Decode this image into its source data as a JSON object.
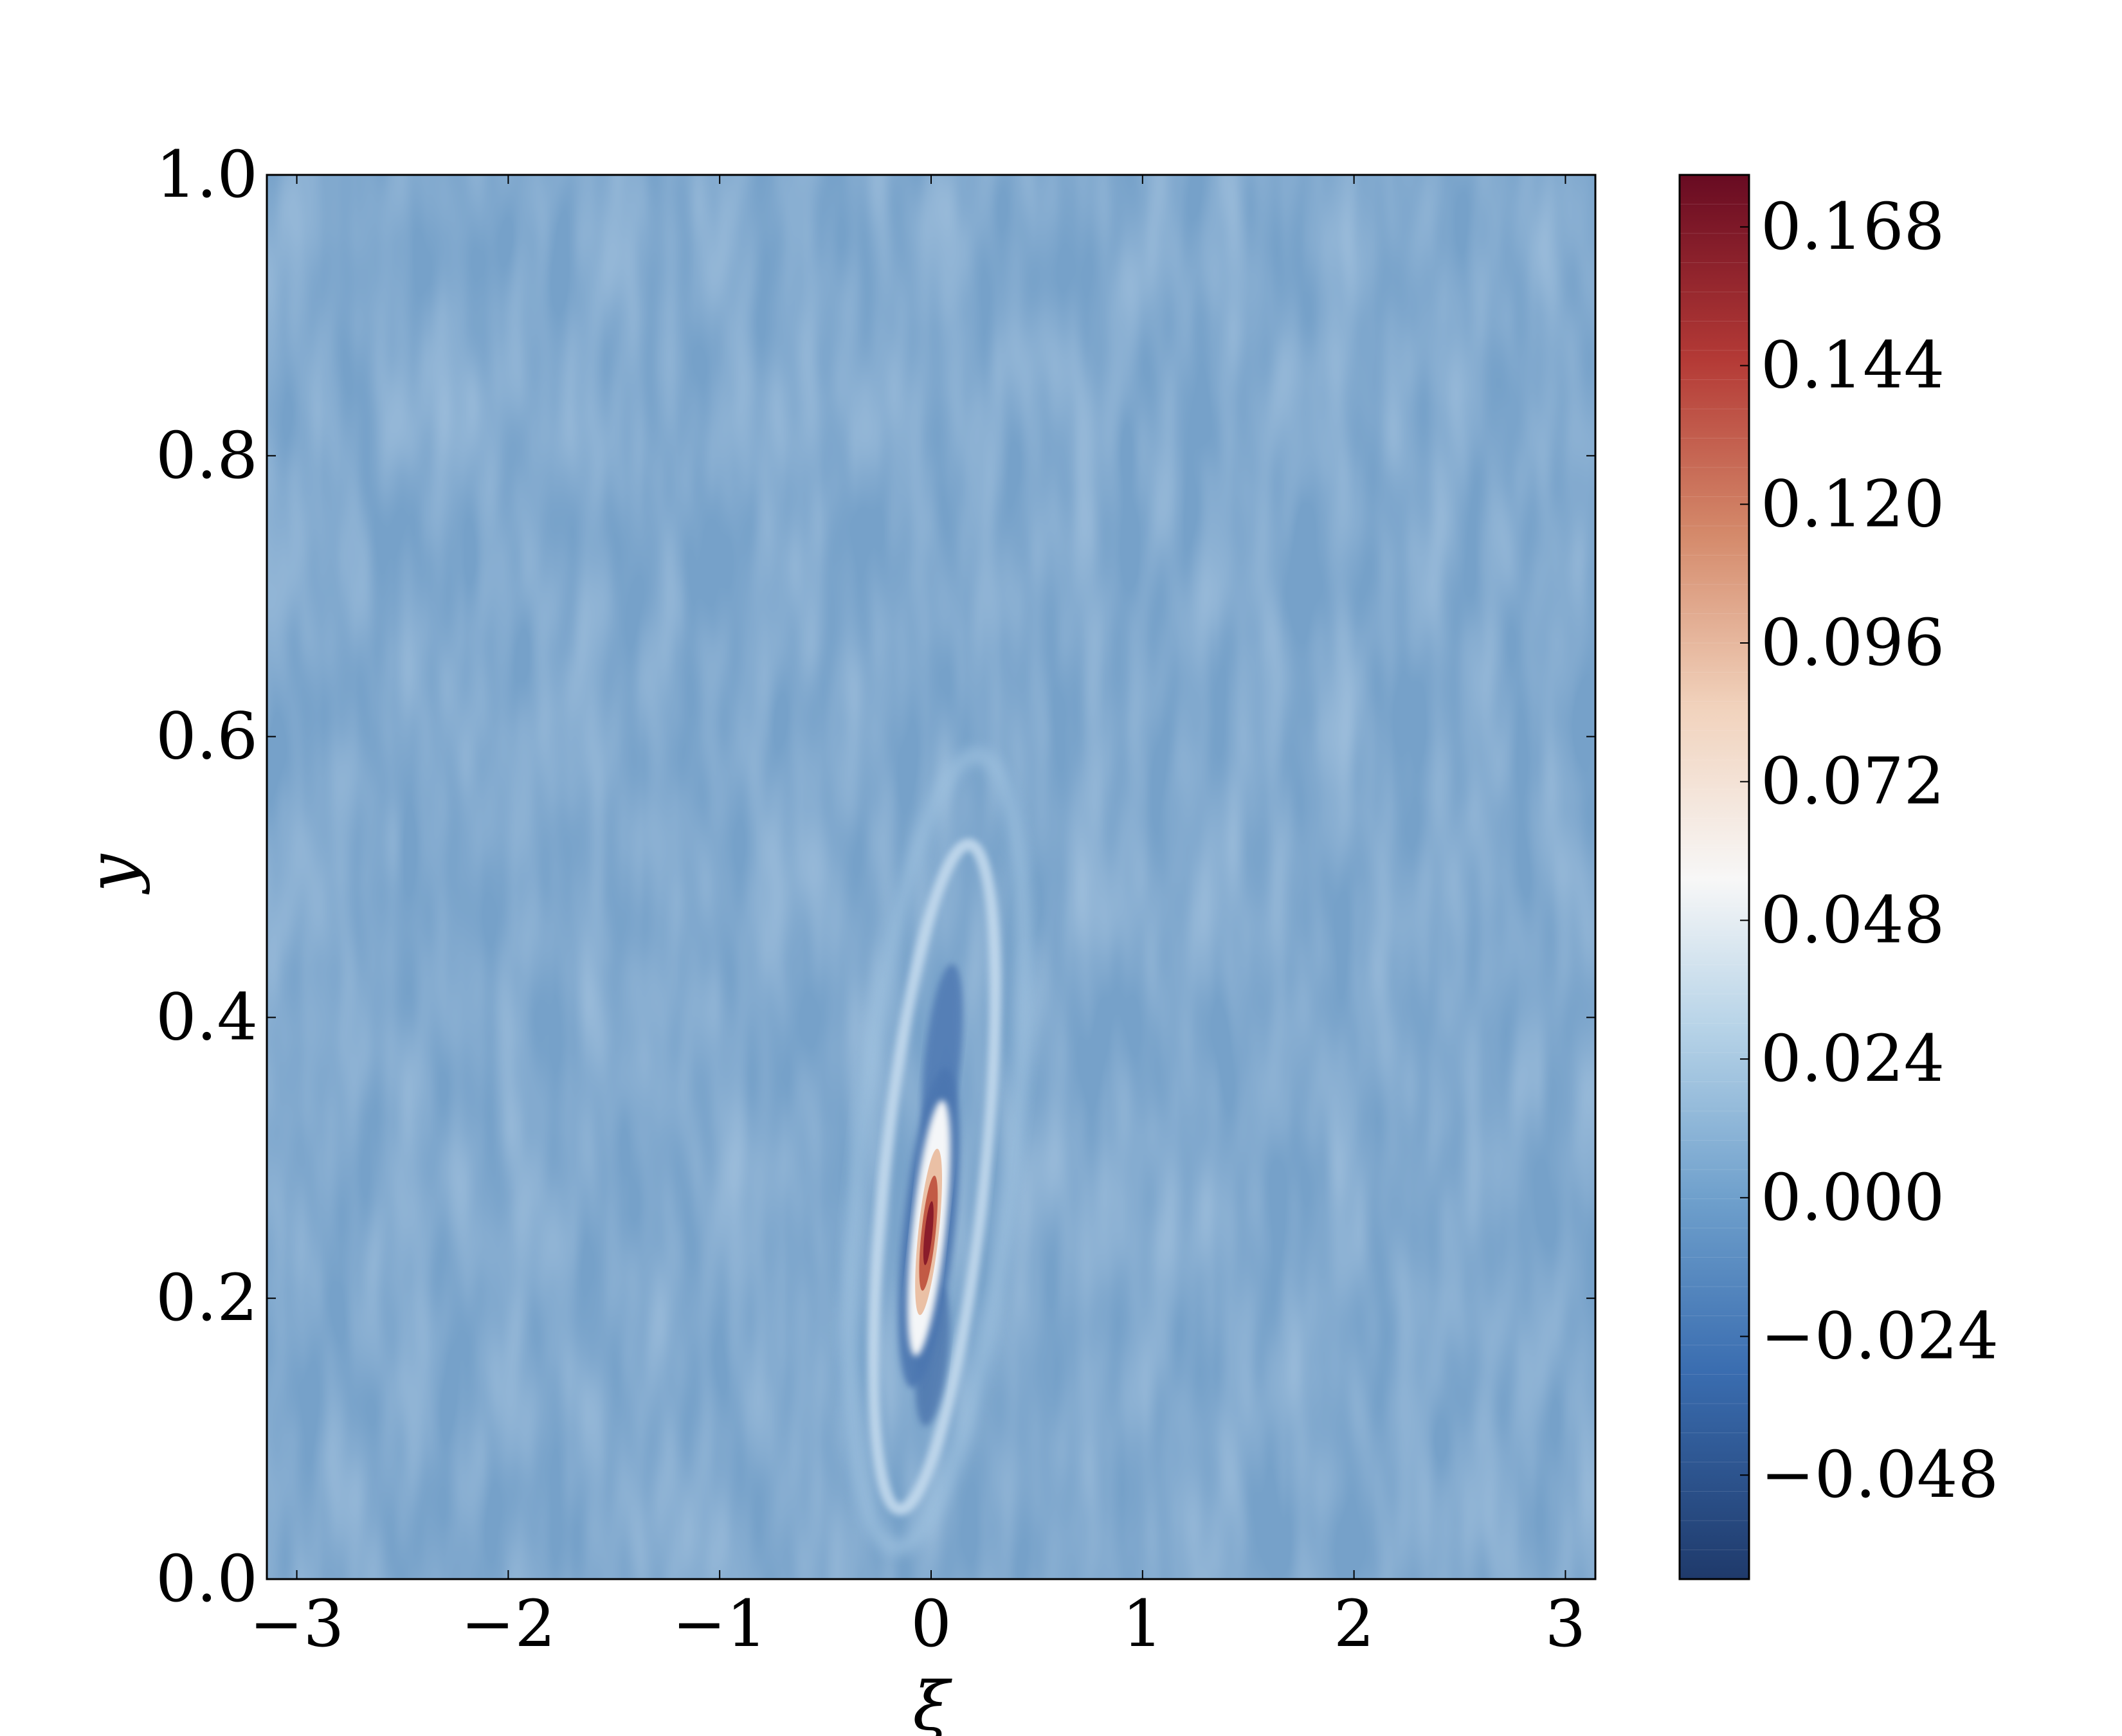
{
  "chart_data": {
    "type": "heatmap",
    "title": "",
    "xlabel": "ξ",
    "ylabel": "y",
    "xlim": [
      -3.14159,
      3.14159
    ],
    "ylim": [
      0.0,
      1.0
    ],
    "x_ticks": [
      {
        "value": -3,
        "label": "−3"
      },
      {
        "value": -2,
        "label": "−2"
      },
      {
        "value": -1,
        "label": "−1"
      },
      {
        "value": 0,
        "label": "0"
      },
      {
        "value": 1,
        "label": "1"
      },
      {
        "value": 2,
        "label": "2"
      },
      {
        "value": 3,
        "label": "3"
      }
    ],
    "y_ticks": [
      {
        "value": 0.0,
        "label": "0.0"
      },
      {
        "value": 0.2,
        "label": "0.2"
      },
      {
        "value": 0.4,
        "label": "0.4"
      },
      {
        "value": 0.6,
        "label": "0.6"
      },
      {
        "value": 0.8,
        "label": "0.8"
      },
      {
        "value": 1.0,
        "label": "1.0"
      }
    ],
    "colorbar": {
      "range": [
        -0.066,
        0.177
      ],
      "colormap": "RdBu_r",
      "colors": [
        "#1f3a6b",
        "#3a6db0",
        "#6fa0cc",
        "#b8d4e8",
        "#f7f7f7",
        "#f1d2bc",
        "#d4896a",
        "#b43a36",
        "#680b22"
      ],
      "ticks": [
        {
          "value": 0.168,
          "label": "0.168"
        },
        {
          "value": 0.144,
          "label": "0.144"
        },
        {
          "value": 0.12,
          "label": "0.120"
        },
        {
          "value": 0.096,
          "label": "0.096"
        },
        {
          "value": 0.072,
          "label": "0.072"
        },
        {
          "value": 0.048,
          "label": "0.048"
        },
        {
          "value": 0.024,
          "label": "0.024"
        },
        {
          "value": 0.0,
          "label": "0.000"
        },
        {
          "value": -0.024,
          "label": "−0.024"
        },
        {
          "value": -0.048,
          "label": "−0.048"
        }
      ]
    },
    "background_level": 0.0,
    "features": [
      {
        "name": "peak",
        "center": [
          -0.01,
          0.25
        ],
        "value": 0.177
      },
      {
        "name": "trough-upper",
        "center": [
          -0.03,
          0.37
        ],
        "value": -0.04
      },
      {
        "name": "trough-lower",
        "center": [
          0.07,
          0.16
        ],
        "value": -0.03
      }
    ]
  }
}
